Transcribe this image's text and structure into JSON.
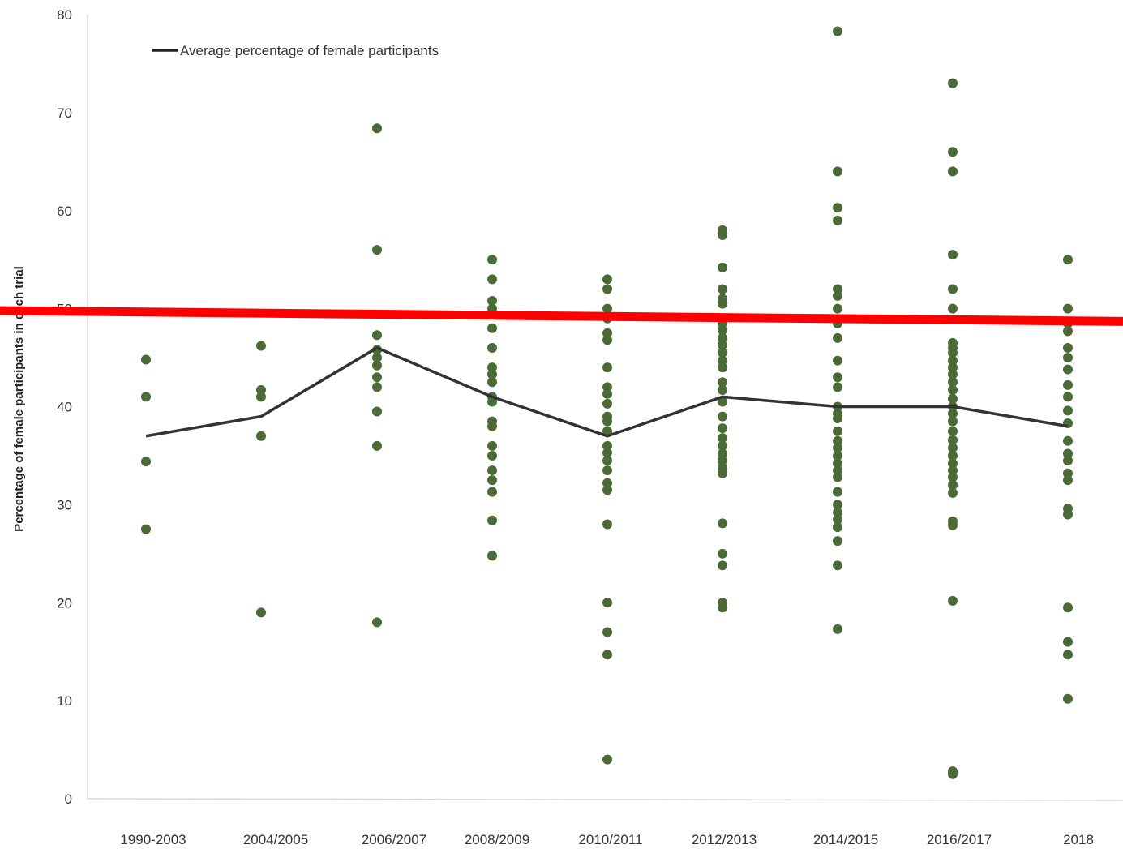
{
  "chart_data": {
    "type": "scatter",
    "ylabel": "Percentage of female participants in each trial",
    "xlabel": "",
    "ylim": [
      0,
      80
    ],
    "yticks": [
      0,
      10,
      20,
      30,
      40,
      50,
      60,
      70,
      80
    ],
    "categories": [
      "1990-2003",
      "2004/2005",
      "2006/2007",
      "2008/2009",
      "2010/2011",
      "2012/2013",
      "2014/2015",
      "2016/2017",
      "2018"
    ],
    "grid": false,
    "legend_position": "top-left",
    "point_color": "#4a6b35",
    "line_color": "#333333",
    "reference_line_color": "#ff0000",
    "series": [
      {
        "type": "scatter",
        "points": [
          [
            44.8,
            41.0,
            34.4,
            27.5
          ],
          [
            46.2,
            41.7,
            41.0,
            37.0,
            19.0
          ],
          [
            68.4,
            56.0,
            47.3,
            45.8,
            45.0,
            44.2,
            43.0,
            42.0,
            39.5,
            36.0,
            18.0
          ],
          [
            55.0,
            53.0,
            50.8,
            50.0,
            48.0,
            46.0,
            44.0,
            43.3,
            42.5,
            41.0,
            40.5,
            38.5,
            38.0,
            36.0,
            35.0,
            33.5,
            32.5,
            31.3,
            28.4,
            24.8
          ],
          [
            53.0,
            52.0,
            50.0,
            49.0,
            47.5,
            46.8,
            44.0,
            42.0,
            41.3,
            40.3,
            39.0,
            38.5,
            37.5,
            36.0,
            35.3,
            34.5,
            33.5,
            32.2,
            31.5,
            28.0,
            20.0,
            17.0,
            14.7,
            4.0
          ],
          [
            58.0,
            57.5,
            54.2,
            52.0,
            51.0,
            50.5,
            48.5,
            47.8,
            47.0,
            46.3,
            45.5,
            44.7,
            44.0,
            42.5,
            41.7,
            40.5,
            39.0,
            37.8,
            36.8,
            36.0,
            35.2,
            34.5,
            33.8,
            33.2,
            28.1,
            25.0,
            23.8,
            20.0,
            19.5
          ],
          [
            78.3,
            64.0,
            60.3,
            59.0,
            52.0,
            51.3,
            50.0,
            48.5,
            47.0,
            44.7,
            43.0,
            42.0,
            40.0,
            39.3,
            38.8,
            37.5,
            36.5,
            35.8,
            35.0,
            34.2,
            33.5,
            32.8,
            31.3,
            30.0,
            29.2,
            28.5,
            27.7,
            26.3,
            23.8,
            17.3
          ],
          [
            73.0,
            66.0,
            64.0,
            55.5,
            52.0,
            50.0,
            46.5,
            46.0,
            45.5,
            44.7,
            44.0,
            43.3,
            42.5,
            41.7,
            40.8,
            40.0,
            39.3,
            38.5,
            37.5,
            36.6,
            35.8,
            35.0,
            34.2,
            33.5,
            32.8,
            32.0,
            31.2,
            28.3,
            27.9,
            20.2,
            2.8,
            2.5
          ],
          [
            55.0,
            50.0,
            48.5,
            47.7,
            46.0,
            45.0,
            43.8,
            42.2,
            41.0,
            39.6,
            38.3,
            36.5,
            35.2,
            34.5,
            33.2,
            32.5,
            29.6,
            29.0,
            19.5,
            16.0,
            14.7,
            10.2
          ]
        ]
      },
      {
        "type": "line",
        "name": "Average percentage of female participants",
        "values": [
          37,
          39,
          46,
          41,
          37,
          41,
          40,
          40,
          38
        ]
      }
    ],
    "reference_line": {
      "y_left": 49.8,
      "y_right": 48.7
    }
  }
}
